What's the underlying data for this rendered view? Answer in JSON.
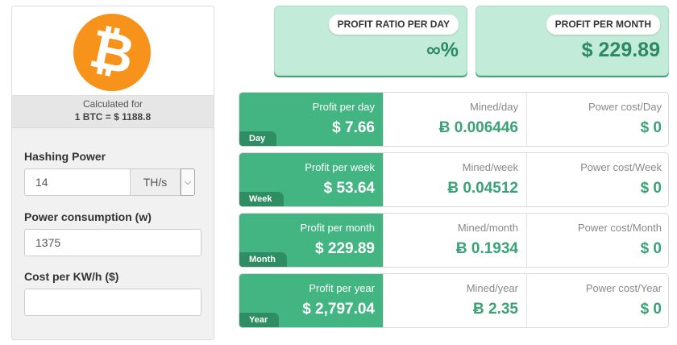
{
  "left": {
    "logo_icon": "bitcoin-logo",
    "logo_symbol": "₿",
    "calculated_for_label": "Calculated for",
    "rate_text": "1 BTC = $ 1188.8",
    "hashing_power_label": "Hashing Power",
    "hashing_power_value": "14",
    "hashing_unit": "TH/s",
    "power_consumption_label": "Power consumption (w)",
    "power_consumption_value": "1375",
    "cost_label": "Cost per KW/h ($)",
    "cost_value": ""
  },
  "summary": {
    "ratio_label": "PROFIT RATIO PER DAY",
    "ratio_value": "∞%",
    "month_label": "PROFIT PER MONTH",
    "month_value": "$ 229.89"
  },
  "rows": [
    {
      "tag": "Day",
      "profit_label": "Profit per day",
      "profit_value": "$ 7.66",
      "mined_label": "Mined/day",
      "mined_value": "Ƀ 0.006446",
      "power_label": "Power cost/Day",
      "power_value": "$ 0"
    },
    {
      "tag": "Week",
      "profit_label": "Profit per week",
      "profit_value": "$ 53.64",
      "mined_label": "Mined/week",
      "mined_value": "Ƀ 0.04512",
      "power_label": "Power cost/Week",
      "power_value": "$ 0"
    },
    {
      "tag": "Month",
      "profit_label": "Profit per month",
      "profit_value": "$ 229.89",
      "mined_label": "Mined/month",
      "mined_value": "Ƀ 0.1934",
      "power_label": "Power cost/Month",
      "power_value": "$ 0"
    },
    {
      "tag": "Year",
      "profit_label": "Profit per year",
      "profit_value": "$ 2,797.04",
      "mined_label": "Mined/year",
      "mined_value": "Ƀ 2.35",
      "power_label": "Power cost/Year",
      "power_value": "$ 0"
    }
  ],
  "colors": {
    "brand_orange": "#f7931a",
    "profit_green": "#42b582",
    "tag_green": "#2e8d62",
    "value_green": "#3aa276",
    "card_mint": "#c3ebda"
  }
}
